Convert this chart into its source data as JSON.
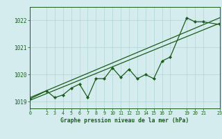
{
  "title": "Graphe pression niveau de la mer (hPa)",
  "background_color": "#d4ecee",
  "grid_color": "#b8d8da",
  "line_color": "#1a5c1a",
  "xlim": [
    0,
    23
  ],
  "ylim": [
    1018.75,
    1022.5
  ],
  "xticks": [
    0,
    2,
    3,
    4,
    5,
    6,
    7,
    8,
    9,
    10,
    11,
    12,
    13,
    14,
    15,
    16,
    17,
    19,
    20,
    21,
    23
  ],
  "yticks": [
    1019,
    1020,
    1021,
    1022
  ],
  "series1_x": [
    0,
    2,
    3,
    4,
    5,
    6,
    7,
    8,
    9,
    10,
    11,
    12,
    13,
    14,
    15,
    16,
    17,
    19,
    20,
    21,
    23
  ],
  "series1_y": [
    1019.1,
    1019.4,
    1019.15,
    1019.25,
    1019.5,
    1019.65,
    1019.15,
    1019.85,
    1019.85,
    1020.25,
    1019.9,
    1020.2,
    1019.85,
    1020.0,
    1019.85,
    1020.5,
    1020.65,
    1022.1,
    1021.95,
    1021.95,
    1021.85
  ],
  "series2_x": [
    0,
    23
  ],
  "series2_y": [
    1019.05,
    1021.9
  ],
  "series3_x": [
    0,
    23
  ],
  "series3_y": [
    1019.15,
    1022.1
  ]
}
